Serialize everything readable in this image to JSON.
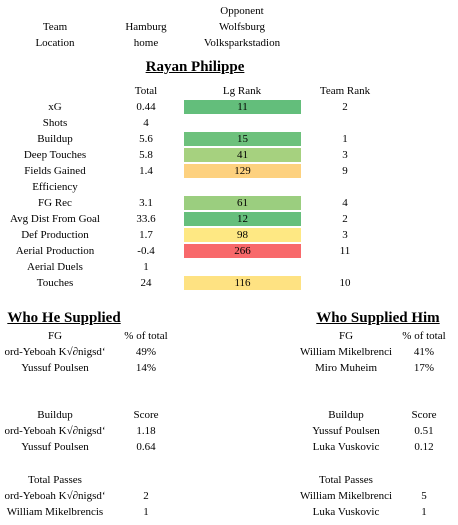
{
  "header": {
    "opponent_label": "Opponent",
    "rows": [
      {
        "label": "Team",
        "value": "Hamburg",
        "opponent": "Wolfsburg"
      },
      {
        "label": "Location",
        "value": "home",
        "opponent": "Volksparkstadion"
      }
    ]
  },
  "player": {
    "name": "Rayan Philippe",
    "columns": [
      "Total",
      "Lg Rank",
      "Team Rank"
    ],
    "rows": [
      {
        "label": "xG",
        "total": 0.44,
        "lg_rank": 11,
        "color": "#63be7b",
        "team_rank": 2
      },
      {
        "label": "Shots",
        "total": 4
      },
      {
        "label": "Buildup",
        "total": 5.6,
        "lg_rank": 15,
        "color": "#6dc17c",
        "team_rank": 1
      },
      {
        "label": "Deep Touches",
        "total": 5.8,
        "lg_rank": 41,
        "color": "#a6d17f",
        "team_rank": 3
      },
      {
        "label": "Fields Gained",
        "total": 1.4,
        "lg_rank": 129,
        "color": "#fdd17f",
        "team_rank": 9
      },
      {
        "label": "Efficiency"
      },
      {
        "label": "FG Rec",
        "total": 3.1,
        "lg_rank": 61,
        "color": "#9bce7f",
        "team_rank": 4
      },
      {
        "label": "Avg Dist From Goal",
        "total": 33.6,
        "lg_rank": 12,
        "color": "#66bf7c",
        "team_rank": 2
      },
      {
        "label": "Def Production",
        "total": 1.7,
        "lg_rank": 98,
        "color": "#fee883",
        "team_rank": 3
      },
      {
        "label": "Aerial Production",
        "total": -0.4,
        "lg_rank": 266,
        "color": "#f8696b",
        "team_rank": 11
      },
      {
        "label": "Aerial Duels",
        "total": 1
      },
      {
        "label": "Touches",
        "total": 24,
        "lg_rank": 116,
        "color": "#fee282",
        "team_rank": 10
      }
    ]
  },
  "sections": [
    {
      "title": "Who He Supplied",
      "tables": [
        {
          "headers": [
            "FG",
            "% of total"
          ],
          "rows": [
            [
              "ord-Yeboah K√∂nigsd‘",
              "49%"
            ],
            [
              "Yussuf Poulsen",
              "14%"
            ]
          ]
        },
        {
          "headers": [
            "Buildup",
            "Score"
          ],
          "rows": [
            [
              "ord-Yeboah K√∂nigsd‘",
              1.18
            ],
            [
              "Yussuf Poulsen",
              0.64
            ]
          ]
        },
        {
          "headers": [
            "Total Passes"
          ],
          "rows": [
            [
              "ord-Yeboah K√∂nigsd‘",
              2
            ],
            [
              "William Mikelbrencis",
              1
            ]
          ]
        }
      ]
    },
    {
      "title": "Who Supplied Him",
      "tables": [
        {
          "headers": [
            "FG",
            "% of total"
          ],
          "rows": [
            [
              "William Mikelbrenci",
              "41%"
            ],
            [
              "Miro Muheim",
              "17%"
            ]
          ]
        },
        {
          "headers": [
            "Buildup",
            "Score"
          ],
          "rows": [
            [
              "Yussuf Poulsen",
              0.51
            ],
            [
              "Luka Vuskovic",
              0.12
            ]
          ]
        },
        {
          "headers": [
            "Total Passes"
          ],
          "rows": [
            [
              "William Mikelbrenci",
              5
            ],
            [
              "Luka Vuskovic",
              1
            ]
          ]
        }
      ]
    }
  ]
}
